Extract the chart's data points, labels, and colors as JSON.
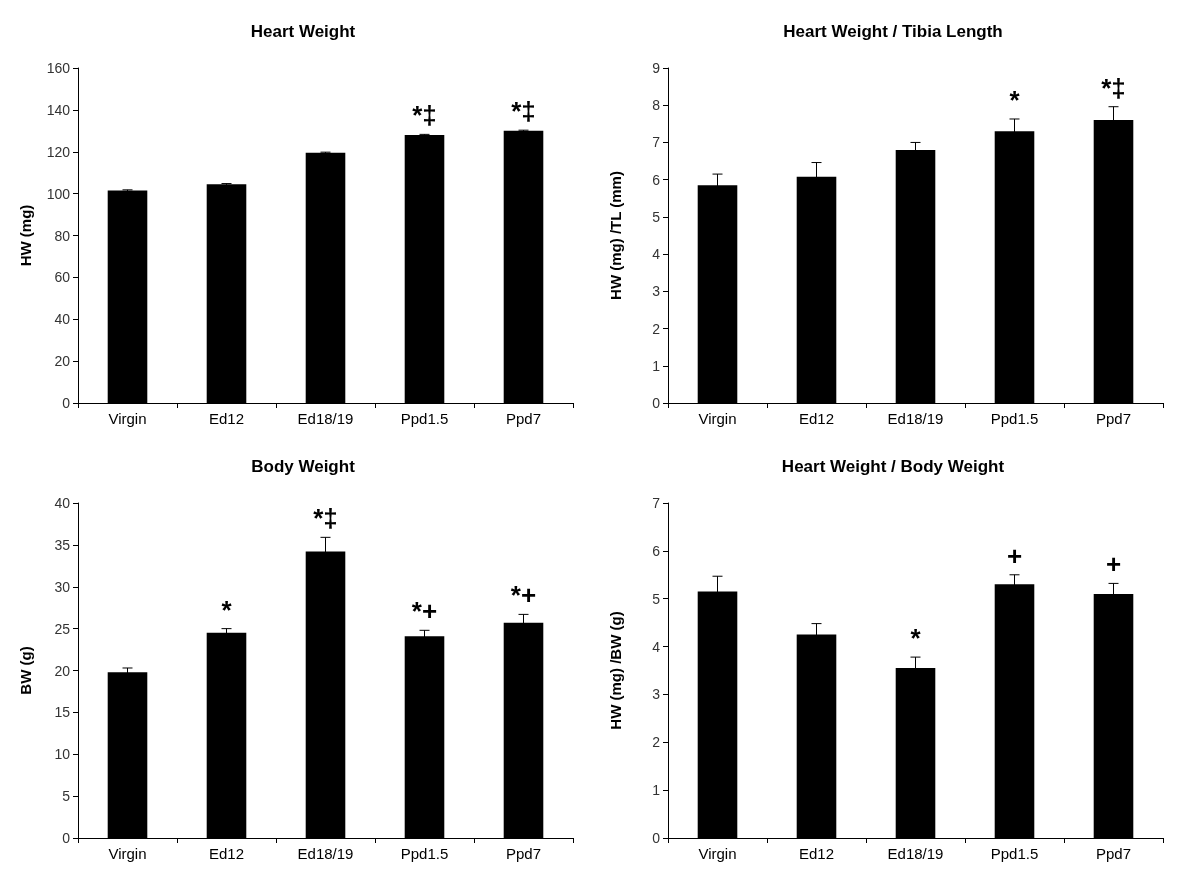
{
  "chart_data": [
    {
      "type": "bar",
      "title": "Heart Weight",
      "ylabel": "HW (mg)",
      "categories": [
        "Virgin",
        "Ed12",
        "Ed18/19",
        "Ppd1.5",
        "Ppd7"
      ],
      "values": [
        101.5,
        104.5,
        119.5,
        128,
        130
      ],
      "errors": [
        0.3,
        0.3,
        0.3,
        0.3,
        0.3
      ],
      "color": "#000000",
      "ylim": [
        0,
        160
      ],
      "yticks": [
        0,
        20,
        40,
        60,
        80,
        100,
        120,
        140,
        160
      ],
      "grid": false,
      "annotations": [
        {
          "text": "*‡",
          "x": "Ppd1.5",
          "y": 128
        },
        {
          "text": "*‡",
          "x": "Ppd7",
          "y": 130
        }
      ]
    },
    {
      "type": "bar",
      "title": "Heart Weight / Tibia Length",
      "ylabel": "HW (mg) /TL (mm)",
      "categories": [
        "Virgin",
        "Ed12",
        "Ed18/19",
        "Ppd1.5",
        "Ppd7"
      ],
      "values": [
        5.85,
        6.08,
        6.8,
        7.3,
        7.6
      ],
      "errors": [
        0.3,
        0.38,
        0.2,
        0.33,
        0.36
      ],
      "color": "#000000",
      "ylim": [
        0,
        9
      ],
      "yticks": [
        0,
        1,
        2,
        3,
        4,
        5,
        6,
        7,
        8,
        9
      ],
      "grid": false,
      "annotations": [
        {
          "text": "*",
          "x": "Ppd1.5",
          "y": 7.3
        },
        {
          "text": "*‡",
          "x": "Ppd7",
          "y": 7.6
        }
      ]
    },
    {
      "type": "bar",
      "title": "Body Weight",
      "ylabel": "BW (g)",
      "categories": [
        "Virgin",
        "Ed12",
        "Ed18/19",
        "Ppd1.5",
        "Ppd7"
      ],
      "values": [
        19.8,
        24.5,
        34.2,
        24.1,
        25.7
      ],
      "errors": [
        0.5,
        0.5,
        1.7,
        0.7,
        1.0
      ],
      "color": "#000000",
      "ylim": [
        0,
        40
      ],
      "yticks": [
        0,
        5,
        10,
        15,
        20,
        25,
        30,
        35,
        40
      ],
      "grid": false,
      "annotations": [
        {
          "text": "*",
          "x": "Ed12",
          "y": 24.5
        },
        {
          "text": "*‡",
          "x": "Ed18/19",
          "y": 34.2
        },
        {
          "text": "*+",
          "x": "Ppd1.5",
          "y": 24.1
        },
        {
          "text": "*+",
          "x": "Ppd7",
          "y": 25.7
        }
      ]
    },
    {
      "type": "bar",
      "title": "Heart Weight / Body Weight",
      "ylabel": "HW (mg) /BW (g)",
      "categories": [
        "Virgin",
        "Ed12",
        "Ed18/19",
        "Ppd1.5",
        "Ppd7"
      ],
      "values": [
        5.15,
        4.25,
        3.55,
        5.3,
        5.1
      ],
      "errors": [
        0.32,
        0.23,
        0.23,
        0.2,
        0.22
      ],
      "color": "#000000",
      "ylim": [
        0,
        7
      ],
      "yticks": [
        0,
        1,
        2,
        3,
        4,
        5,
        6,
        7
      ],
      "grid": false,
      "annotations": [
        {
          "text": "*",
          "x": "Ed18/19",
          "y": 3.55
        },
        {
          "text": "+",
          "x": "Ppd1.5",
          "y": 5.3
        },
        {
          "text": "+",
          "x": "Ppd7",
          "y": 5.1
        }
      ]
    }
  ]
}
